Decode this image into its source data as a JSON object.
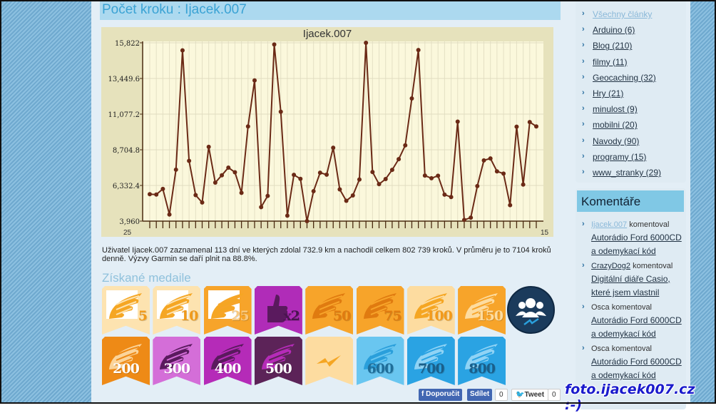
{
  "main": {
    "title": "Počet kroku : Ijacek.007",
    "description": "Uživatel Ijacek.007 zaznamenal 113 dní ve kterých zdolal 732.9 km a nachodil celkem 802 739 kroků. V průměru je to 7104 kroků denně. Výzvy Garmin se daří plnit na 88.8%.",
    "medals_heading": "Získané medaile"
  },
  "chart_data": {
    "type": "line",
    "title": "Ijacek.007",
    "ylim": [
      3960,
      15822
    ],
    "yticks": [
      "3,960",
      "6,332.4",
      "8,704.8",
      "11,077.2",
      "13,449.6",
      "15,822"
    ],
    "x_first_label": "25",
    "x_last_label": "15",
    "grid": true,
    "color": "#6b2a16",
    "values": [
      5750,
      5730,
      6100,
      4400,
      7380,
      15320,
      7970,
      5690,
      5200,
      8900,
      6520,
      7010,
      7520,
      7210,
      5840,
      10260,
      13320,
      4890,
      5640,
      15710,
      11240,
      4320,
      7040,
      6770,
      3960,
      5950,
      7180,
      7050,
      8840,
      6070,
      5310,
      5670,
      6730,
      15822,
      7230,
      6420,
      6760,
      7370,
      8080,
      9000,
      12120,
      15340,
      6990,
      6810,
      6980,
      5720,
      5560,
      10580,
      4040,
      4190,
      6290,
      8000,
      8130,
      7270,
      7120,
      5020,
      10240,
      6390,
      10550,
      10260
    ]
  },
  "medals": [
    {
      "label": "5",
      "bg": "#fde3b0",
      "inner": "#ffffff",
      "wing": "#f5a623",
      "num": "#f09a1a"
    },
    {
      "label": "10",
      "bg": "#fde3b0",
      "inner": "#ffffff",
      "wing": "#f5a623",
      "num": "#f09a1a"
    },
    {
      "label": "25",
      "bg": "#f7a42a",
      "inner": "#ffffff",
      "wing": "#f5a623",
      "num": "#f8c980"
    },
    {
      "label": "x2",
      "bg": "#b02cb8",
      "inner": "#b02cb8",
      "wing": "#5a1a5e",
      "num": "#4a1450",
      "icon": "thumbs-up"
    },
    {
      "label": "50",
      "bg": "#f7a42a",
      "inner": "#f7a42a",
      "wing": "#e07b10",
      "num": "#e07b10"
    },
    {
      "label": "75",
      "bg": "#f7a42a",
      "inner": "#f7a42a",
      "wing": "#e07b10",
      "num": "#e07b10"
    },
    {
      "label": "100",
      "bg": "#fddca0",
      "inner": "#fddca0",
      "wing": "#f5a623",
      "num": "#f39a1a"
    },
    {
      "label": "150",
      "bg": "#f7a42a",
      "inner": "#f7a42a",
      "wing": "#fddca0",
      "num": "#fddca0"
    },
    {
      "label": "200",
      "bg": "#ee8a16",
      "inner": "#ee8a16",
      "wing": "#fbd49a",
      "num": "#ffffff"
    },
    {
      "label": "300",
      "bg": "#d46ed8",
      "inner": "#d46ed8",
      "wing": "#5a1a5e",
      "num": "#ffffff"
    },
    {
      "label": "400",
      "bg": "#b52bb8",
      "inner": "#b52bb8",
      "wing": "#5a1a5e",
      "num": "#ffffff"
    },
    {
      "label": "500",
      "bg": "#5c2358",
      "inner": "#5c2358",
      "wing": "#b52bb8",
      "num": "#ffffff"
    },
    {
      "label": "",
      "bg": "#fddca0",
      "inner": "#fddca0",
      "wing": "#f5a623",
      "num": "#f5a623",
      "icon": "lightning"
    },
    {
      "label": "600",
      "bg": "#69c6f0",
      "inner": "#69c6f0",
      "wing": "#2a9fdb",
      "num": "#1e6e9a"
    },
    {
      "label": "700",
      "bg": "#2aa3e3",
      "inner": "#2aa3e3",
      "wing": "#8fd3f5",
      "num": "#1a5f8a"
    },
    {
      "label": "800",
      "bg": "#2aa3e3",
      "inner": "#2aa3e3",
      "wing": "#8fd3f5",
      "num": "#1a5f8a"
    }
  ],
  "share": {
    "recommend": "Doporučit",
    "share": "Sdílet",
    "fb_count": "0",
    "tweet": "Tweet",
    "tweet_count": "0"
  },
  "sidebar": {
    "categories": [
      "Všechny články",
      "Arduino (6)",
      "Blog (210)",
      "filmy (11)",
      "Geocaching (32)",
      "Hry (21)",
      "minulost (9)",
      "mobilni (20)",
      "Navody (90)",
      "programy (15)",
      "www_stranky (29)"
    ],
    "comments_title": "Komentáře",
    "comments": [
      {
        "author": "Ijacek.007",
        "verb": "komentoval",
        "article": "Autorádio Ford 6000CD a odemykací kód"
      },
      {
        "author": "CrazyDog2",
        "verb": "komentoval",
        "article": "Digitální diáře Casio, které jsem vlastnil"
      },
      {
        "author": "Osca",
        "verb": "komentoval",
        "article": "Autorádio Ford 6000CD a odemykací kód"
      },
      {
        "author": "Osca",
        "verb": "komentoval",
        "article": "Autorádio Ford 6000CD a odemykací kód"
      }
    ]
  },
  "watermark": "foto.ijacek007.cz :-)"
}
